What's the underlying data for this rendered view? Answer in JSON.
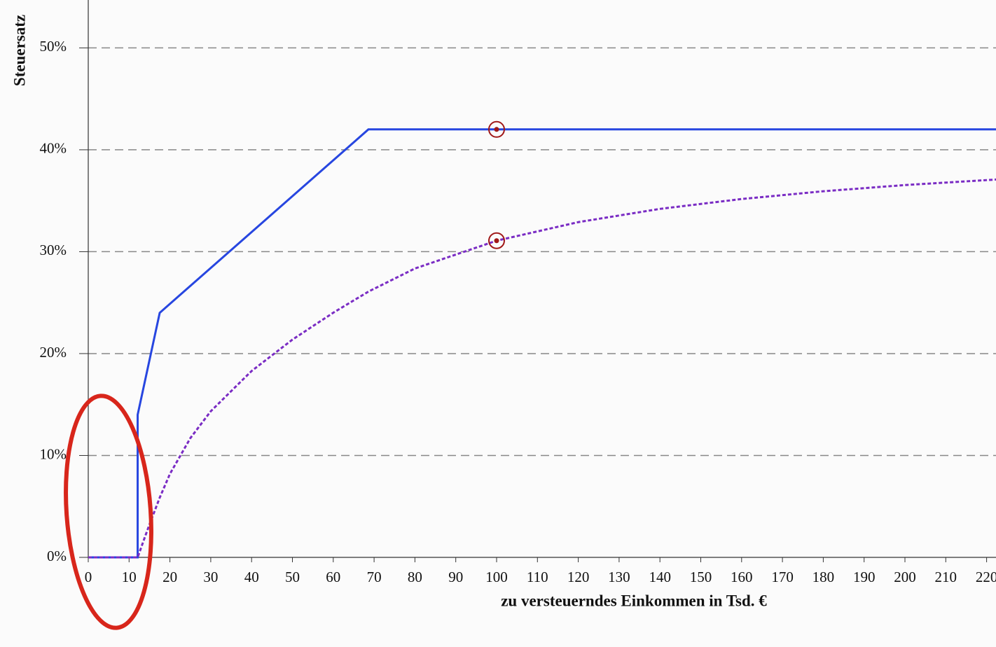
{
  "chart_data": {
    "type": "line",
    "y_label": "Steuersatz",
    "x_label": "zu versteuerndes Einkommen in Tsd. €",
    "xlim": [
      0,
      222.3
    ],
    "ylim": [
      0,
      54.7
    ],
    "xticks": [
      0,
      10,
      20,
      30,
      40,
      50,
      60,
      70,
      80,
      90,
      100,
      110,
      120,
      130,
      140,
      150,
      160,
      170,
      180,
      190,
      200,
      210,
      220
    ],
    "yticks": [
      {
        "value": 0,
        "label": "0%"
      },
      {
        "value": 10,
        "label": "10%"
      },
      {
        "value": 20,
        "label": "20%"
      },
      {
        "value": 30,
        "label": "30%"
      },
      {
        "value": 40,
        "label": "40%"
      },
      {
        "value": 50,
        "label": "50%"
      }
    ],
    "grid": true,
    "series": [
      {
        "color": "#2746e0",
        "style": "solid",
        "x": [
          0,
          12.1,
          12.1,
          17.5,
          68.6,
          222.3
        ],
        "values": [
          0,
          0,
          14,
          24,
          42,
          42
        ]
      },
      {
        "color": "#7a2cc4",
        "style": "dotted",
        "x": [
          0,
          12.1,
          14,
          15,
          17.5,
          20,
          25,
          30,
          40,
          50,
          60,
          68.6,
          80,
          100,
          120,
          140,
          160,
          180,
          200,
          222.3
        ],
        "values": [
          0,
          0,
          2.14,
          3.23,
          5.86,
          8.19,
          11.7,
          14.34,
          18.29,
          21.37,
          24.01,
          26.08,
          28.35,
          31.08,
          32.9,
          34.2,
          35.17,
          35.93,
          36.54,
          37.08
        ]
      }
    ],
    "markers": {
      "color": "#a01818",
      "x": [
        100,
        100
      ],
      "values": [
        42,
        31.08
      ]
    }
  }
}
